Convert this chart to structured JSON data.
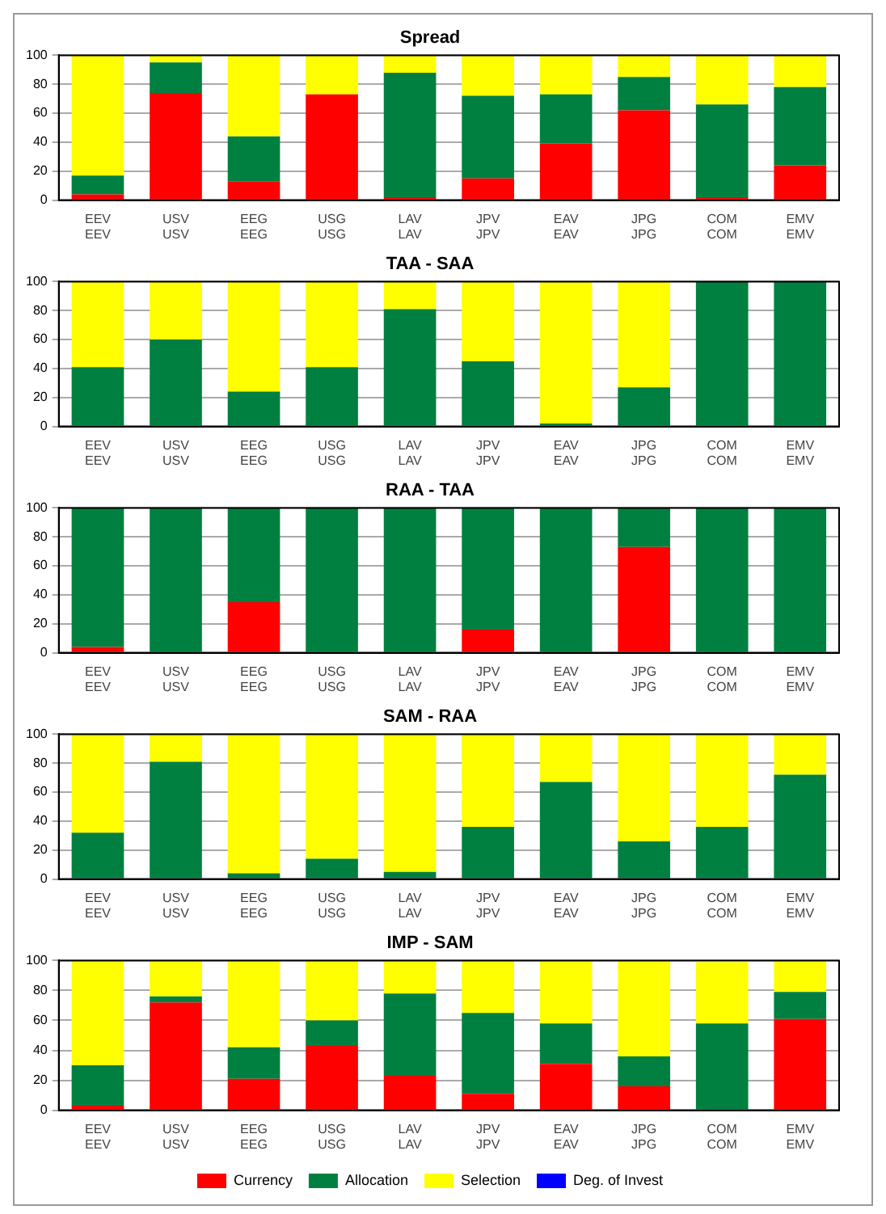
{
  "chart_data": [
    {
      "type": "bar",
      "title": "Spread",
      "stacked": true,
      "categories": [
        "EEV\nEEV",
        "USV\nUSV",
        "EEG\nEEG",
        "USG\nUSG",
        "LAV\nLAV",
        "JPV\nJPV",
        "EAV\nEAV",
        "JPG\nJPG",
        "COM\nCOM",
        "EMV\nEMV"
      ],
      "ylim": [
        0,
        100
      ],
      "yticks": [
        0,
        20,
        40,
        60,
        80,
        100
      ],
      "grid": "y",
      "series": [
        {
          "color": "#ff0000",
          "values": [
            4,
            74,
            13,
            73,
            2,
            15,
            39,
            62,
            2,
            24
          ]
        },
        {
          "color": "#008040",
          "values": [
            13,
            21,
            31,
            0,
            86,
            57,
            34,
            23,
            64,
            54
          ]
        },
        {
          "color": "#ffff00",
          "values": [
            83,
            5,
            56,
            27,
            12,
            28,
            27,
            15,
            34,
            22
          ]
        }
      ]
    },
    {
      "type": "bar",
      "title": "TAA - SAA",
      "stacked": true,
      "categories": [
        "EEV\nEEV",
        "USV\nUSV",
        "EEG\nEEG",
        "USG\nUSG",
        "LAV\nLAV",
        "JPV\nJPV",
        "EAV\nEAV",
        "JPG\nJPG",
        "COM\nCOM",
        "EMV\nEMV"
      ],
      "ylim": [
        0,
        100
      ],
      "yticks": [
        0,
        20,
        40,
        60,
        80,
        100
      ],
      "grid": "y",
      "series": [
        {
          "color": "#008040",
          "values": [
            41,
            60,
            24,
            41,
            81,
            45,
            2,
            27,
            100,
            100
          ]
        },
        {
          "color": "#ffff00",
          "values": [
            59,
            40,
            76,
            59,
            19,
            55,
            98,
            73,
            0,
            0
          ]
        }
      ]
    },
    {
      "type": "bar",
      "title": "RAA - TAA",
      "stacked": true,
      "categories": [
        "EEV\nEEV",
        "USV\nUSV",
        "EEG\nEEG",
        "USG\nUSG",
        "LAV\nLAV",
        "JPV\nJPV",
        "EAV\nEAV",
        "JPG\nJPG",
        "COM\nCOM",
        "EMV\nEMV"
      ],
      "ylim": [
        0,
        100
      ],
      "yticks": [
        0,
        20,
        40,
        60,
        80,
        100
      ],
      "grid": "y",
      "series": [
        {
          "color": "#ff0000",
          "values": [
            4,
            0,
            35,
            0,
            0,
            16,
            0,
            73,
            0,
            0
          ]
        },
        {
          "color": "#008040",
          "values": [
            96,
            100,
            65,
            100,
            100,
            84,
            100,
            27,
            100,
            100
          ]
        }
      ]
    },
    {
      "type": "bar",
      "title": "SAM - RAA",
      "stacked": true,
      "categories": [
        "EEV\nEEV",
        "USV\nUSV",
        "EEG\nEEG",
        "USG\nUSG",
        "LAV\nLAV",
        "JPV\nJPV",
        "EAV\nEAV",
        "JPG\nJPG",
        "COM\nCOM",
        "EMV\nEMV"
      ],
      "ylim": [
        0,
        100
      ],
      "yticks": [
        0,
        20,
        40,
        60,
        80,
        100
      ],
      "grid": "y",
      "series": [
        {
          "color": "#008040",
          "values": [
            32,
            81,
            4,
            14,
            5,
            36,
            67,
            26,
            36,
            72
          ]
        },
        {
          "color": "#ffff00",
          "values": [
            68,
            19,
            96,
            86,
            95,
            64,
            33,
            74,
            64,
            28
          ]
        }
      ]
    },
    {
      "type": "bar",
      "title": "IMP - SAM",
      "stacked": true,
      "categories": [
        "EEV\nEEV",
        "USV\nUSV",
        "EEG\nEEG",
        "USG\nUSG",
        "LAV\nLAV",
        "JPV\nJPV",
        "EAV\nEAV",
        "JPG\nJPG",
        "COM\nCOM",
        "EMV\nEMV"
      ],
      "ylim": [
        0,
        100
      ],
      "yticks": [
        0,
        20,
        40,
        60,
        80,
        100
      ],
      "grid": "y",
      "legend": "bottom",
      "series": [
        {
          "name": "Currency",
          "color": "#ff0000",
          "values": [
            3,
            72,
            21,
            43,
            23,
            11,
            31,
            16,
            null,
            61
          ]
        },
        {
          "name": "Allocation",
          "color": "#008040",
          "values": [
            27,
            4,
            21,
            17,
            55,
            54,
            27,
            20,
            58,
            18
          ]
        },
        {
          "name": "Selection",
          "color": "#ffff00",
          "values": [
            70,
            24,
            58,
            40,
            22,
            35,
            42,
            64,
            41,
            21
          ]
        },
        {
          "name": "Deg. of Invest",
          "color": "#0000ff",
          "values": [
            0,
            0,
            0,
            0,
            0,
            0,
            0,
            0,
            0,
            0
          ]
        }
      ]
    }
  ]
}
